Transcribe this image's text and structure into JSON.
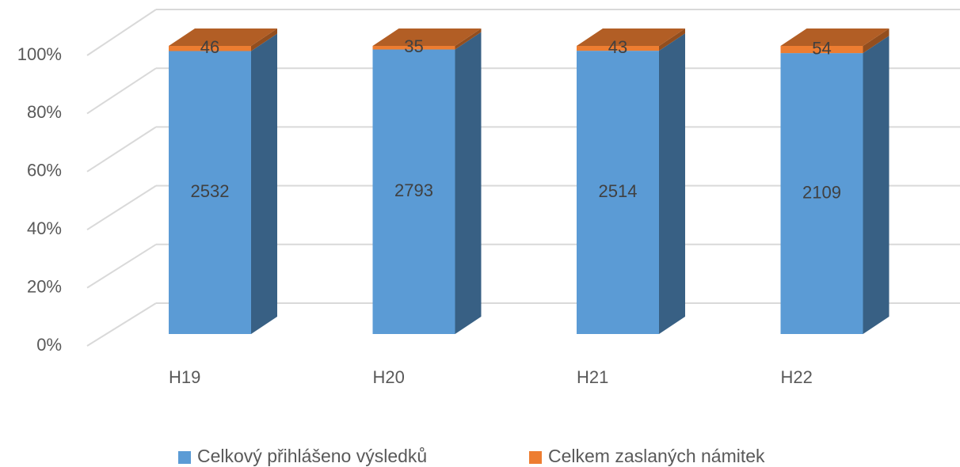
{
  "chart_data": {
    "type": "bar",
    "stacking": "percent",
    "three_d": true,
    "categories": [
      "H19",
      "H20",
      "H21",
      "H22"
    ],
    "series": [
      {
        "name": "Celkový přihlášeno výsledků",
        "color": "#5b9bd5",
        "values": [
          2532,
          2793,
          2514,
          2109
        ]
      },
      {
        "name": "Celkem zaslaných námitek",
        "color": "#ed7d31",
        "values": [
          46,
          35,
          43,
          54
        ]
      }
    ],
    "ylim": [
      0,
      100
    ],
    "yticks": [
      {
        "value": 0,
        "label": "0%"
      },
      {
        "value": 20,
        "label": "20%"
      },
      {
        "value": 40,
        "label": "40%"
      },
      {
        "value": 60,
        "label": "60%"
      },
      {
        "value": 80,
        "label": "80%"
      },
      {
        "value": 100,
        "label": "100%"
      }
    ],
    "grid": true,
    "legend": "bottom"
  }
}
